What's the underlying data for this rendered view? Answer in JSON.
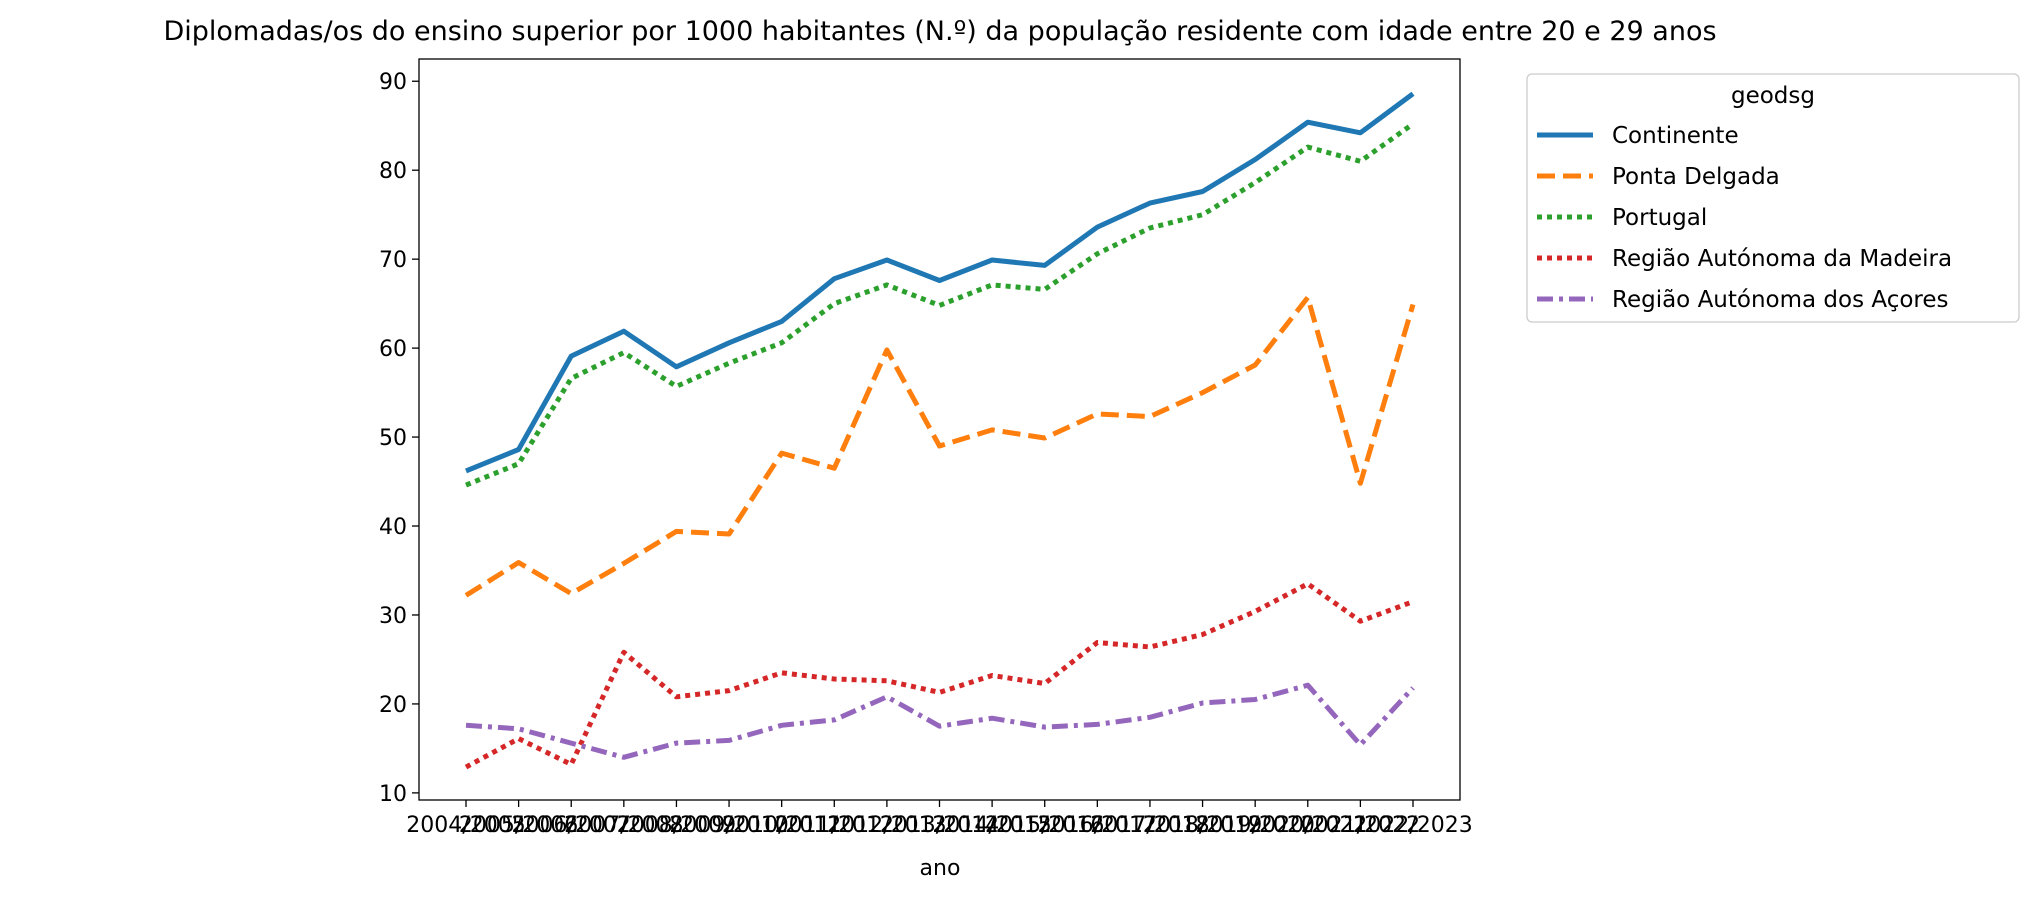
{
  "chart_data": {
    "type": "line",
    "title": "Diplomadas/os do ensino superior por 1000 habitantes (N.º) da população residente com idade entre 20 e 29 anos",
    "xlabel": "ano",
    "ylabel": "",
    "ylim": [
      9.2,
      92.5
    ],
    "yticks": [
      10,
      20,
      30,
      40,
      50,
      60,
      70,
      80,
      90
    ],
    "grid": false,
    "legend": {
      "title": "geodsg",
      "placement": "outside-top-right"
    },
    "categories": [
      "2004/2005",
      "2005/2006",
      "2006/2007",
      "2007/2008",
      "2008/2009",
      "2009/2010",
      "2010/2011",
      "2011/2012",
      "2012/2013",
      "2013/2014",
      "2014/2015",
      "2015/2016",
      "2016/2017",
      "2017/2018",
      "2018/2019",
      "2019/2020",
      "2020/2021",
      "2021/2022",
      "2022/2023"
    ],
    "series": [
      {
        "name": "Continente",
        "color": "#1f77b4",
        "dash": "solid",
        "values": [
          46.2,
          48.6,
          59.1,
          61.9,
          57.9,
          60.6,
          63.0,
          67.8,
          69.9,
          67.6,
          69.9,
          69.3,
          73.6,
          76.3,
          77.6,
          81.2,
          85.4,
          84.2,
          88.6
        ]
      },
      {
        "name": "Ponta Delgada",
        "color": "#ff7f0e",
        "dash": "dashed",
        "values": [
          32.2,
          35.9,
          32.4,
          35.8,
          39.4,
          39.1,
          48.2,
          46.5,
          59.8,
          49.0,
          50.8,
          49.9,
          52.6,
          52.3,
          55.0,
          58.1,
          65.7,
          44.8,
          64.9
        ]
      },
      {
        "name": "Portugal",
        "color": "#2ca02c",
        "dash": "dotted",
        "values": [
          44.6,
          47.0,
          56.6,
          59.5,
          55.7,
          58.3,
          60.6,
          65.0,
          67.1,
          64.8,
          67.1,
          66.6,
          70.6,
          73.5,
          75.0,
          78.6,
          82.6,
          81.0,
          85.2
        ]
      },
      {
        "name": "Região Autónoma da Madeira",
        "color": "#d62728",
        "dash": "dotted",
        "values": [
          12.9,
          16.1,
          13.2,
          25.8,
          20.8,
          21.5,
          23.5,
          22.8,
          22.6,
          21.3,
          23.2,
          22.3,
          26.9,
          26.4,
          27.8,
          30.4,
          33.5,
          29.3,
          31.5
        ]
      },
      {
        "name": "Região Autónoma dos Açores",
        "color": "#9467bd",
        "dash": "dashdot",
        "values": [
          17.6,
          17.2,
          15.6,
          14.0,
          15.6,
          15.9,
          17.6,
          18.2,
          20.8,
          17.5,
          18.4,
          17.4,
          17.7,
          18.5,
          20.1,
          20.5,
          22.1,
          15.4,
          21.8
        ]
      }
    ]
  }
}
